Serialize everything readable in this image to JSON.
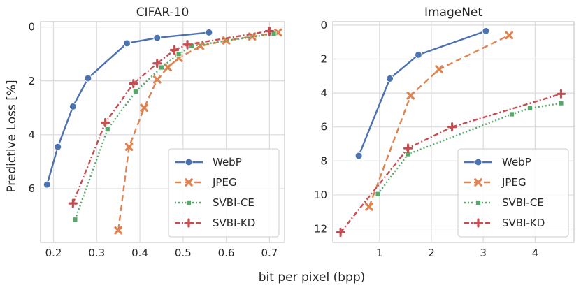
{
  "figure": {
    "xlabel": "bit per pixel (bpp)",
    "ylabel": "Predictive Loss [%]"
  },
  "legend": {
    "position": "bottom-right",
    "entries": [
      "WebP",
      "JPEG",
      "SVBI-CE",
      "SVBI-KD"
    ]
  },
  "styles": {
    "WebP": {
      "color": "#4c72b0",
      "dash": "solid",
      "marker": "circle"
    },
    "JPEG": {
      "color": "#dd8452",
      "dash": "dashed",
      "marker": "x"
    },
    "SVBI-CE": {
      "color": "#55a868",
      "dash": "dotted",
      "marker": "square"
    },
    "SVBI-KD": {
      "color": "#c44e52",
      "dash": "dashdot",
      "marker": "plus"
    }
  },
  "chart_data": [
    {
      "type": "line",
      "title": "CIFAR-10",
      "xlabel": "bit per pixel (bpp)",
      "ylabel": "Predictive Loss [%]",
      "xlim": [
        0.17,
        0.735
      ],
      "ylim": [
        -0.2,
        8.0
      ],
      "y_inverted": true,
      "xticks": [
        0.2,
        0.3,
        0.4,
        0.5,
        0.6,
        0.7
      ],
      "xtick_labels": [
        "0.2",
        "0.3",
        "0.4",
        "0.5",
        "0.6",
        "0.7"
      ],
      "yticks": [
        0,
        2,
        4,
        6
      ],
      "ytick_labels": [
        "0",
        "2",
        "4",
        "6"
      ],
      "grid": true,
      "series": [
        {
          "name": "WebP",
          "x": [
            0.185,
            0.21,
            0.245,
            0.28,
            0.37,
            0.44,
            0.56
          ],
          "y": [
            5.85,
            4.45,
            2.95,
            1.9,
            0.6,
            0.4,
            0.2
          ]
        },
        {
          "name": "JPEG",
          "x": [
            0.35,
            0.375,
            0.41,
            0.44,
            0.465,
            0.49,
            0.54,
            0.6,
            0.66,
            0.72
          ],
          "y": [
            7.55,
            4.45,
            3.0,
            1.95,
            1.5,
            1.15,
            0.7,
            0.5,
            0.35,
            0.2
          ]
        },
        {
          "name": "SVBI-CE",
          "x": [
            0.25,
            0.325,
            0.39,
            0.45,
            0.49,
            0.52,
            0.71
          ],
          "y": [
            7.15,
            3.8,
            2.4,
            1.5,
            1.0,
            0.7,
            0.25
          ]
        },
        {
          "name": "SVBI-KD",
          "x": [
            0.245,
            0.32,
            0.385,
            0.44,
            0.48,
            0.51,
            0.7
          ],
          "y": [
            6.55,
            3.55,
            2.1,
            1.35,
            0.85,
            0.65,
            0.15
          ]
        }
      ]
    },
    {
      "type": "line",
      "title": "ImageNet",
      "xlabel": "bit per pixel (bpp)",
      "ylabel": "",
      "xlim": [
        0.1,
        4.75
      ],
      "ylim": [
        -0.2,
        12.8
      ],
      "y_inverted": true,
      "xticks": [
        1,
        2,
        3,
        4
      ],
      "xtick_labels": [
        "1",
        "2",
        "3",
        "4"
      ],
      "yticks": [
        0,
        2,
        4,
        6,
        8,
        10,
        12
      ],
      "ytick_labels": [
        "0",
        "2",
        "4",
        "6",
        "8",
        "10",
        "12"
      ],
      "grid": true,
      "series": [
        {
          "name": "WebP",
          "x": [
            0.6,
            1.2,
            1.75,
            3.05
          ],
          "y": [
            7.7,
            3.15,
            1.75,
            0.35
          ]
        },
        {
          "name": "JPEG",
          "x": [
            0.8,
            1.6,
            2.15,
            3.5
          ],
          "y": [
            10.7,
            4.15,
            2.6,
            0.6
          ]
        },
        {
          "name": "SVBI-CE",
          "x": [
            0.97,
            1.55,
            3.55,
            3.9,
            4.5
          ],
          "y": [
            9.95,
            7.6,
            5.25,
            4.9,
            4.6
          ]
        },
        {
          "name": "SVBI-KD",
          "x": [
            0.25,
            1.55,
            2.4,
            4.5
          ],
          "y": [
            12.2,
            7.25,
            6.0,
            4.05
          ]
        }
      ]
    }
  ]
}
